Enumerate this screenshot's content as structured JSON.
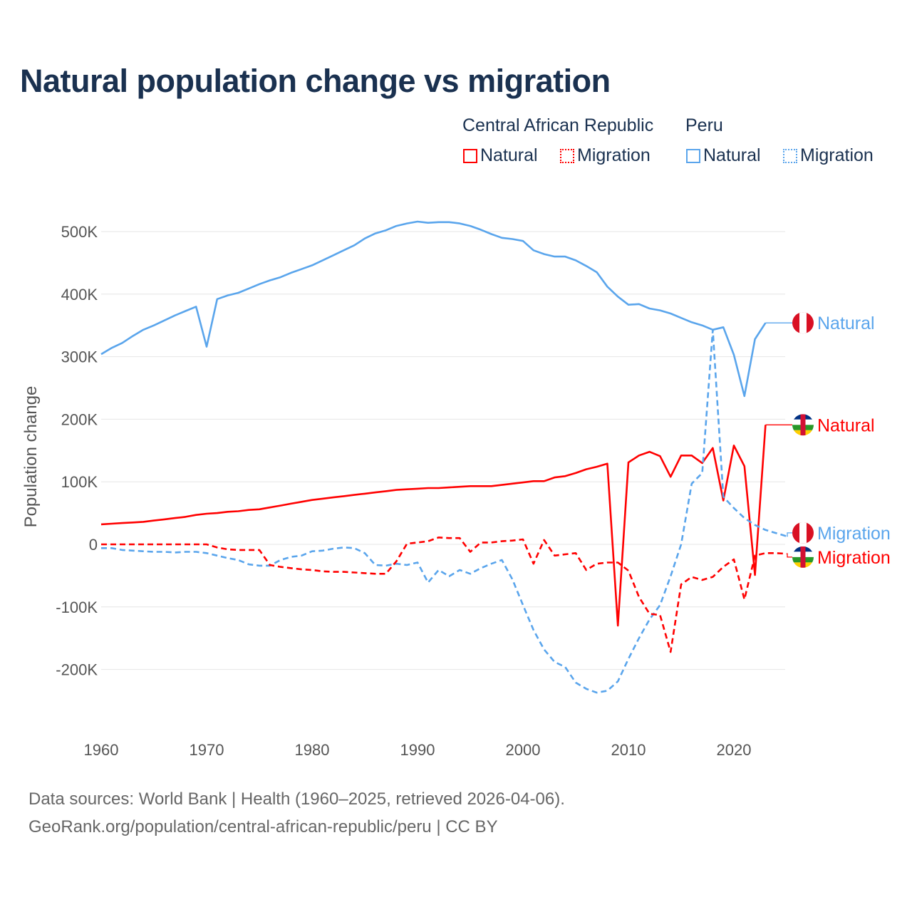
{
  "title": "Natural population change vs migration",
  "legend": {
    "groups": [
      {
        "name": "Central African Republic",
        "items": [
          "Natural",
          "Migration"
        ],
        "color": "#ff0000"
      },
      {
        "name": "Peru",
        "items": [
          "Natural",
          "Migration"
        ],
        "color": "#5aa5ec"
      }
    ]
  },
  "footer": {
    "line1": "Data sources: World Bank | Health (1960–2025, retrieved 2026-04-06).",
    "line2": "GeoRank.org/population/central-african-republic/peru | CC BY"
  },
  "chart_data": {
    "type": "line",
    "title": "Natural population change vs migration",
    "xlabel": "",
    "ylabel": "Population change",
    "xlim": [
      1960,
      2025
    ],
    "ylim": [
      -270000,
      540000
    ],
    "x_ticks": [
      1960,
      1970,
      1980,
      1990,
      2000,
      2010,
      2020
    ],
    "y_ticks": [
      -200000,
      -100000,
      0,
      100000,
      200000,
      300000,
      400000,
      500000
    ],
    "y_tick_labels": [
      "-200K",
      "-100K",
      "0",
      "100K",
      "200K",
      "300K",
      "400K",
      "500K"
    ],
    "x_tick_labels": [
      "1960",
      "1970",
      "1980",
      "1990",
      "2000",
      "2010",
      "2020"
    ],
    "grid": true,
    "units_note": "values in thousands",
    "series": [
      {
        "name": "Peru Natural",
        "label": "Natural",
        "country": "Peru",
        "color": "#5aa5ec",
        "dashed": false,
        "start_year": 1960,
        "values": [
          304,
          314,
          322,
          333,
          343,
          350,
          358,
          366,
          373,
          380,
          316,
          392,
          398,
          402,
          409,
          416,
          422,
          427,
          434,
          440,
          446,
          454,
          462,
          470,
          478,
          489,
          497,
          502,
          509,
          513,
          516,
          514,
          515,
          515,
          513,
          509,
          503,
          496,
          490,
          488,
          485,
          470,
          464,
          460,
          460,
          454,
          445,
          435,
          412,
          396,
          383,
          384,
          377,
          374,
          369,
          362,
          355,
          350,
          343,
          347,
          303,
          237,
          328,
          354
        ]
      },
      {
        "name": "Central African Republic Natural",
        "label": "Natural",
        "country": "Central African Republic",
        "color": "#ff0000",
        "dashed": false,
        "start_year": 1960,
        "values": [
          32,
          33,
          34,
          35,
          36,
          38,
          40,
          42,
          44,
          47,
          49,
          50,
          52,
          53,
          55,
          56,
          59,
          62,
          65,
          68,
          71,
          73,
          75,
          77,
          79,
          81,
          83,
          85,
          87,
          88,
          89,
          90,
          90,
          91,
          92,
          93,
          93,
          93,
          95,
          97,
          99,
          101,
          101,
          107,
          109,
          114,
          120,
          124,
          129,
          -130,
          131,
          142,
          148,
          141,
          108,
          142,
          142,
          130,
          154,
          70,
          158,
          125,
          -49,
          191
        ]
      },
      {
        "name": "Peru Migration",
        "label": "Migration",
        "country": "Peru",
        "color": "#5aa5ec",
        "dashed": true,
        "start_year": 1960,
        "values": [
          -6,
          -6,
          -9,
          -10,
          -11,
          -12,
          -12,
          -13,
          -12,
          -12,
          -14,
          -18,
          -22,
          -25,
          -32,
          -34,
          -34,
          -25,
          -20,
          -18,
          -11,
          -10,
          -7,
          -5,
          -6,
          -14,
          -33,
          -34,
          -31,
          -33,
          -29,
          -61,
          -41,
          -51,
          -41,
          -47,
          -38,
          -31,
          -25,
          -56,
          -97,
          -137,
          -168,
          -188,
          -196,
          -221,
          -231,
          -237,
          -234,
          -219,
          -183,
          -150,
          -120,
          -97,
          -51,
          0,
          97,
          114,
          343,
          76,
          58,
          42,
          31,
          23,
          18,
          13
        ]
      },
      {
        "name": "Central African Republic Migration",
        "label": "Migration",
        "country": "Central African Republic",
        "color": "#ff0000",
        "dashed": true,
        "start_year": 1960,
        "values": [
          0,
          0,
          0,
          0,
          0,
          0,
          0,
          0,
          0,
          0,
          0,
          -5,
          -8,
          -9,
          -9,
          -9,
          -33,
          -36,
          -38,
          -40,
          -41,
          -43,
          -44,
          -44,
          -45,
          -46,
          -47,
          -47,
          -27,
          1,
          3,
          5,
          11,
          10,
          10,
          -12,
          3,
          3,
          5,
          6,
          8,
          -31,
          7,
          -18,
          -16,
          -14,
          -41,
          -31,
          -29,
          -29,
          -42,
          -84,
          -111,
          -113,
          -172,
          -64,
          -52,
          -57,
          -52,
          -36,
          -24,
          -88,
          -18,
          -14,
          -14,
          -15
        ]
      }
    ]
  }
}
